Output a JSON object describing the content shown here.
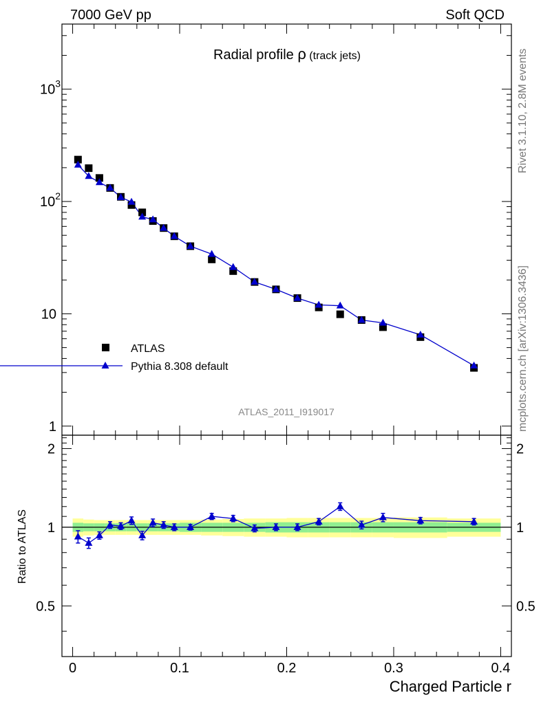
{
  "header": {
    "left": "7000 GeV pp",
    "right": "Soft QCD"
  },
  "side_labels": {
    "rivet": "Rivet 3.1.10,  2.8M events",
    "mcplots": "mcplots.cern.ch [arXiv:1306.3436]"
  },
  "chart_data": {
    "type": "scatter",
    "title_main": "Radial profile ",
    "title_symbol": "ρ",
    "title_sub": " (track jets)",
    "analysis_label": "ATLAS_2011_I919017",
    "xlabel": "Charged Particle r",
    "ylabel_ratio": "Ratio to ATLAS",
    "xlim": [
      -0.01,
      0.41
    ],
    "ylim": [
      0.83,
      3800
    ],
    "yscale": "log",
    "ratio_ylim": [
      0.32,
      2.25
    ],
    "x_ticks": [
      "0",
      "0.1",
      "0.2",
      "0.3",
      "0.4"
    ],
    "y_ticks": [
      {
        "value": 1,
        "base": "1",
        "exp": ""
      },
      {
        "value": 10,
        "base": "10",
        "exp": ""
      },
      {
        "value": 100,
        "base": "10",
        "exp": "2"
      },
      {
        "value": 1000,
        "base": "10",
        "exp": "3"
      }
    ],
    "ratio_ticks": [
      "0.5",
      "1",
      "2"
    ],
    "legend": {
      "position": "bottom-left"
    },
    "x": [
      0.005,
      0.015,
      0.025,
      0.035,
      0.045,
      0.055,
      0.065,
      0.075,
      0.085,
      0.095,
      0.11,
      0.13,
      0.15,
      0.17,
      0.19,
      0.21,
      0.23,
      0.25,
      0.27,
      0.29,
      0.325,
      0.375
    ],
    "series": [
      {
        "name": "ATLAS",
        "color": "#000000",
        "marker": "square",
        "values": [
          236,
          198,
          162,
          132,
          110,
          93,
          80,
          67,
          58,
          49,
          40,
          30.5,
          24,
          19.2,
          16.5,
          13.8,
          11.4,
          9.9,
          8.8,
          7.6,
          6.2,
          3.3
        ]
      },
      {
        "name": "Pythia 8.308 default",
        "color": "#0000cc",
        "marker": "triangle",
        "values": [
          212,
          168,
          148,
          132,
          109,
          99,
          73,
          69,
          58,
          49,
          40,
          34,
          26,
          19.2,
          16.5,
          13.8,
          12.0,
          11.8,
          8.8,
          8.3,
          6.5,
          3.45
        ],
        "ratio": [
          0.92,
          0.87,
          0.93,
          1.02,
          1.01,
          1.06,
          0.93,
          1.04,
          1.02,
          1.0,
          1.0,
          1.1,
          1.08,
          0.99,
          1.0,
          1.0,
          1.05,
          1.2,
          1.02,
          1.09,
          1.06,
          1.05
        ],
        "ratio_err": [
          0.05,
          0.04,
          0.03,
          0.03,
          0.03,
          0.035,
          0.035,
          0.035,
          0.03,
          0.03,
          0.025,
          0.03,
          0.03,
          0.03,
          0.03,
          0.03,
          0.03,
          0.04,
          0.035,
          0.04,
          0.03,
          0.03
        ]
      }
    ],
    "ratio_bands": {
      "edges": [
        0.0,
        0.01,
        0.02,
        0.03,
        0.04,
        0.05,
        0.06,
        0.07,
        0.08,
        0.09,
        0.1,
        0.12,
        0.14,
        0.16,
        0.18,
        0.2,
        0.22,
        0.24,
        0.26,
        0.28,
        0.3,
        0.35,
        0.4
      ],
      "yellow_half": [
        0.08,
        0.07,
        0.065,
        0.065,
        0.065,
        0.065,
        0.065,
        0.065,
        0.065,
        0.065,
        0.065,
        0.07,
        0.075,
        0.08,
        0.08,
        0.085,
        0.085,
        0.085,
        0.085,
        0.085,
        0.09,
        0.08
      ],
      "green_half": [
        0.04,
        0.035,
        0.035,
        0.035,
        0.035,
        0.035,
        0.035,
        0.035,
        0.035,
        0.035,
        0.04,
        0.04,
        0.04,
        0.04,
        0.045,
        0.045,
        0.045,
        0.045,
        0.045,
        0.045,
        0.045,
        0.04
      ],
      "yellow_color": "#ffff99",
      "green_color": "#90ee90"
    }
  }
}
